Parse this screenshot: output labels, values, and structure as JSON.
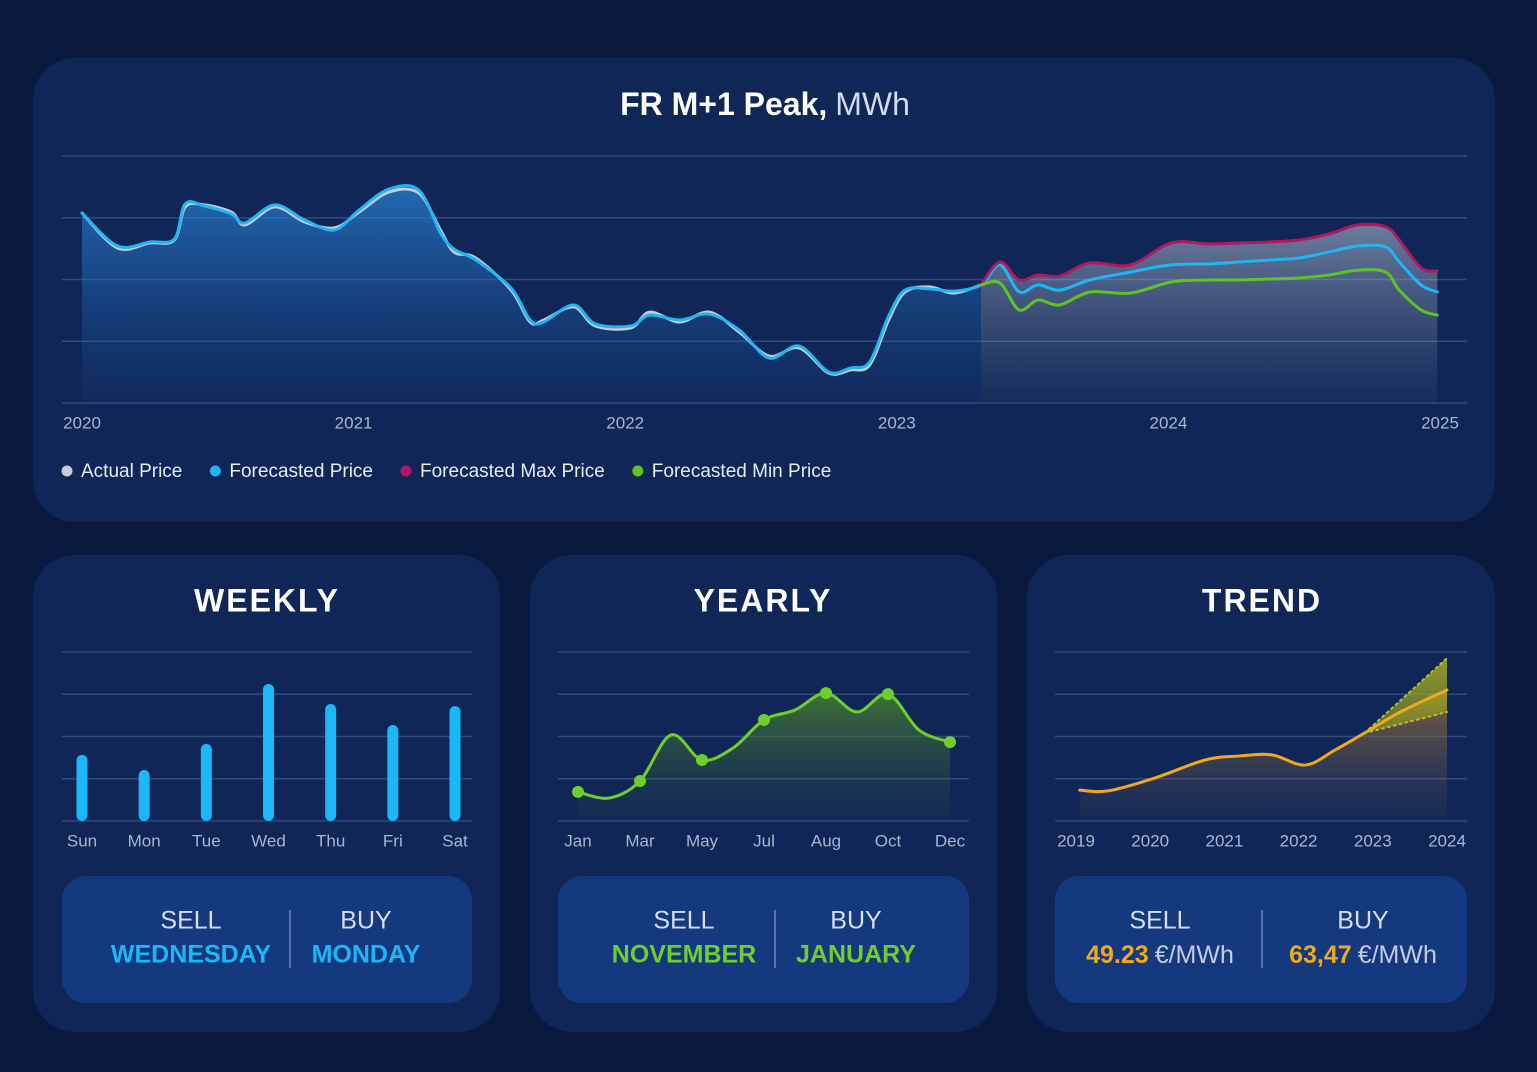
{
  "chart_data": [
    {
      "type": "line",
      "title": "FR M+1 Peak,",
      "title_unit": "MWh",
      "x": [
        2020,
        2020.13,
        2020.25,
        2020.34,
        2020.38,
        2020.45,
        2020.55,
        2020.6,
        2020.71,
        2020.82,
        2020.93,
        2021.02,
        2021.13,
        2021.24,
        2021.32,
        2021.37,
        2021.45,
        2021.58,
        2021.65,
        2021.7,
        2021.81,
        2021.89,
        2022.02,
        2022.09,
        2022.2,
        2022.31,
        2022.42,
        2022.53,
        2022.64,
        2022.75,
        2022.83,
        2022.9,
        2022.97,
        2023.03,
        2023.12,
        2023.21,
        2023.31,
        2023.38,
        2023.45,
        2023.52,
        2023.6,
        2023.71,
        2023.86,
        2024.01,
        2024.15,
        2024.26,
        2024.37,
        2024.48,
        2024.59,
        2024.7,
        2024.8,
        2024.85,
        2024.93,
        2024.99
      ],
      "xlim": [
        2020,
        2025
      ],
      "xticks": [
        2020,
        2021,
        2022,
        2023,
        2024,
        2025
      ],
      "ylim": [
        0,
        100
      ],
      "yticks": [
        0,
        25,
        50,
        75,
        100
      ],
      "grid": true,
      "series": [
        {
          "name": "Actual Price",
          "color": "#c8ccd8",
          "values": [
            76.9,
            62.8,
            64.8,
            66.0,
            79.4,
            80.2,
            77.3,
            72.1,
            79.4,
            73.3,
            70.9,
            77.3,
            85.4,
            85.0,
            70.0,
            61.1,
            58.7,
            45.7,
            32.8,
            33.6,
            38.9,
            31.2,
            30.4,
            36.8,
            32.8,
            36.8,
            28.7,
            19.0,
            22.3,
            12.1,
            13.4,
            15.4,
            33.6,
            44.9,
            47.0,
            44.5,
            47.8,
            null,
            null,
            null,
            null,
            null,
            null,
            null,
            null,
            null,
            null,
            null,
            null,
            null,
            null,
            null,
            null,
            null
          ]
        },
        {
          "name": "Forecasted Price",
          "color": "#1fb6f5",
          "values": [
            76.9,
            63.6,
            65.2,
            66.4,
            80.6,
            79.8,
            76.5,
            72.9,
            80.2,
            74.1,
            70.1,
            78.1,
            86.6,
            86.2,
            68.8,
            62.3,
            57.9,
            46.5,
            33.6,
            32.8,
            39.7,
            32.0,
            31.2,
            35.6,
            33.6,
            36.0,
            29.5,
            18.2,
            23.1,
            12.5,
            14.2,
            16.6,
            35.2,
            45.7,
            46.2,
            45.3,
            47.8,
            55.9,
            45.0,
            47.8,
            45.7,
            49.8,
            53.0,
            55.9,
            56.3,
            57.1,
            57.9,
            58.7,
            61.1,
            63.6,
            63.2,
            57.1,
            47.8,
            45.0
          ]
        },
        {
          "name": "Forecasted Max Price",
          "color": "#b0195f",
          "values": [
            null,
            null,
            null,
            null,
            null,
            null,
            null,
            null,
            null,
            null,
            null,
            null,
            null,
            null,
            null,
            null,
            null,
            null,
            null,
            null,
            null,
            null,
            null,
            null,
            null,
            null,
            null,
            null,
            null,
            null,
            null,
            null,
            null,
            null,
            null,
            null,
            47.8,
            57.1,
            49.8,
            51.8,
            51.4,
            56.7,
            55.9,
            64.8,
            64.4,
            64.8,
            65.2,
            66.0,
            68.4,
            72.1,
            71.3,
            66.0,
            54.7,
            53.4
          ]
        },
        {
          "name": "Forecasted Min Price",
          "color": "#5fc41f",
          "values": [
            null,
            null,
            null,
            null,
            null,
            null,
            null,
            null,
            null,
            null,
            null,
            null,
            null,
            null,
            null,
            null,
            null,
            null,
            null,
            null,
            null,
            null,
            null,
            null,
            null,
            null,
            null,
            null,
            null,
            null,
            null,
            null,
            null,
            null,
            null,
            null,
            47.8,
            48.6,
            37.7,
            41.7,
            39.7,
            44.9,
            44.5,
            49.0,
            49.8,
            49.8,
            50.2,
            50.6,
            51.8,
            53.8,
            53.0,
            45.7,
            37.7,
            35.6
          ]
        }
      ]
    },
    {
      "type": "bar",
      "title": "WEEKLY",
      "categories": [
        "Sun",
        "Mon",
        "Tue",
        "Wed",
        "Thu",
        "Fri",
        "Sat"
      ],
      "values": [
        39.1,
        30.2,
        45.6,
        81.1,
        69.2,
        56.8,
        68.0
      ],
      "color": "#1ab8f7",
      "ylim": [
        0,
        100
      ],
      "yticks": [
        0,
        25,
        50,
        75,
        100
      ],
      "grid": true
    },
    {
      "type": "line",
      "title": "YEARLY",
      "categories": [
        "Jan",
        null,
        "Mar",
        null,
        "May",
        null,
        "Jul",
        null,
        "Aug",
        null,
        "Oct",
        null,
        "Dec"
      ],
      "values": [
        17.2,
        13.6,
        23.7,
        50.9,
        36.1,
        43.2,
        59.8,
        65.7,
        75.7,
        64.5,
        75.1,
        53.8,
        46.7
      ],
      "color": "#6fcf2a",
      "ylim": [
        0,
        100
      ],
      "yticks": [
        0,
        25,
        50,
        75,
        100
      ],
      "grid": true
    },
    {
      "type": "line",
      "title": "TREND",
      "x": [
        2019.05,
        2019.43,
        2020.06,
        2020.74,
        2021.21,
        2021.64,
        2022.09,
        2022.49,
        2022.89,
        2023.37,
        2024
      ],
      "xlim": [
        2019,
        2024
      ],
      "xticks": [
        2019,
        2020,
        2021,
        2022,
        2023,
        2024
      ],
      "ylim": [
        0,
        100
      ],
      "yticks": [
        0,
        25,
        50,
        75,
        100
      ],
      "grid": true,
      "series": [
        {
          "color": "#f0a81c",
          "values": [
            18.3,
            17.8,
            25.4,
            36.1,
            38.5,
            39.1,
            33.1,
            42.0,
            52.1,
            64.5,
            77.5
          ]
        },
        {
          "color": "#b8c21e",
          "dashed": true,
          "values": [
            null,
            null,
            null,
            null,
            null,
            null,
            null,
            null,
            52.1,
            71.2,
            96.4
          ]
        },
        {
          "color": "#b8c21e",
          "dashed": true,
          "values": [
            null,
            null,
            null,
            null,
            null,
            null,
            null,
            null,
            52.1,
            57.4,
            64.5
          ]
        }
      ]
    }
  ],
  "recommendations": [
    {
      "sell_label": "SELL",
      "sell": "WEDNESDAY",
      "buy_label": "BUY",
      "buy": "MONDAY"
    },
    {
      "sell_label": "SELL",
      "sell": "NOVEMBER",
      "buy_label": "BUY",
      "buy": "JANUARY"
    },
    {
      "sell_label": "SELL",
      "sell": "49.23",
      "sell_unit": "€/MWh",
      "buy_label": "BUY",
      "buy": "63,47",
      "buy_unit": "€/MWh"
    }
  ]
}
